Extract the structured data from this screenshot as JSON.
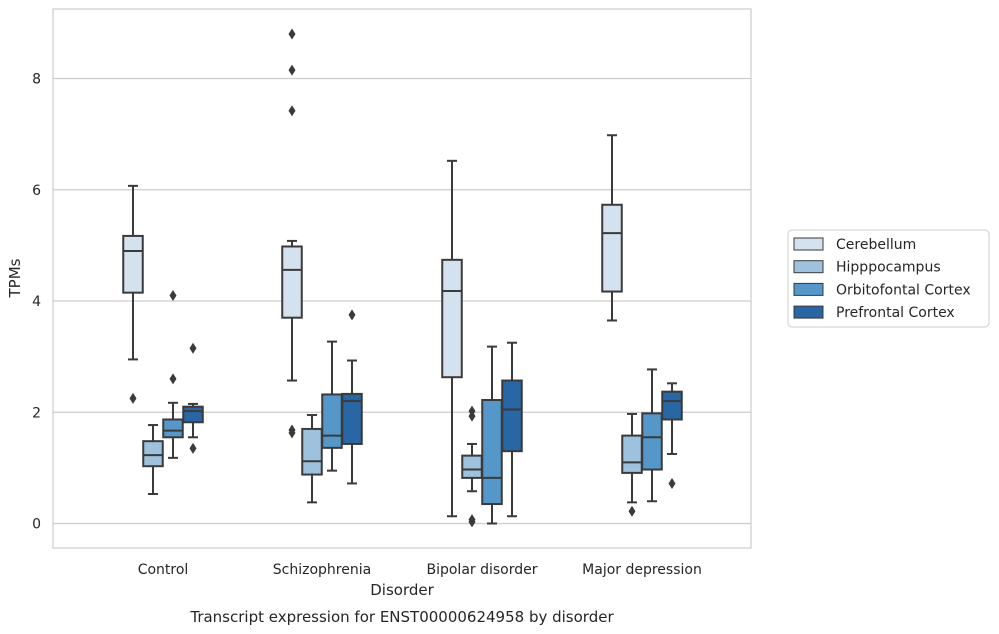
{
  "caption": "Transcript expression for ENST00000624958 by disorder",
  "chart_data": {
    "type": "box",
    "title": "",
    "xlabel": "Disorder",
    "ylabel": "TPMs",
    "ylim": [
      -0.4,
      9.2
    ],
    "yticks": [
      0,
      2,
      4,
      6,
      8
    ],
    "grid": "horizontal",
    "legend_position": "right",
    "categories": [
      "Control",
      "Schizophrenia",
      "Bipolar disorder",
      "Major depression"
    ],
    "series": [
      {
        "name": "Cerebellum",
        "color": "#d4e2f0",
        "boxes": [
          {
            "whislo": 2.95,
            "q1": 4.15,
            "med": 4.9,
            "q3": 5.17,
            "whishi": 6.07,
            "fliers": [
              2.25
            ]
          },
          {
            "whislo": 2.57,
            "q1": 3.7,
            "med": 4.56,
            "q3": 4.98,
            "whishi": 5.08,
            "fliers": [
              1.63,
              1.68,
              7.42,
              8.15,
              8.8
            ]
          },
          {
            "whislo": 0.13,
            "q1": 2.63,
            "med": 4.18,
            "q3": 4.74,
            "whishi": 6.52,
            "fliers": []
          },
          {
            "whislo": 3.65,
            "q1": 4.17,
            "med": 5.22,
            "q3": 5.73,
            "whishi": 6.98,
            "fliers": []
          }
        ]
      },
      {
        "name": "Hipppocampus",
        "color": "#9ec2dd",
        "boxes": [
          {
            "whislo": 0.53,
            "q1": 1.03,
            "med": 1.23,
            "q3": 1.48,
            "whishi": 1.77,
            "fliers": []
          },
          {
            "whislo": 0.38,
            "q1": 0.88,
            "med": 1.12,
            "q3": 1.7,
            "whishi": 1.95,
            "fliers": []
          },
          {
            "whislo": 0.58,
            "q1": 0.82,
            "med": 0.97,
            "q3": 1.22,
            "whishi": 1.43,
            "fliers": [
              0.03,
              0.07,
              1.93,
              2.02
            ]
          },
          {
            "whislo": 0.38,
            "q1": 0.91,
            "med": 1.1,
            "q3": 1.58,
            "whishi": 1.97,
            "fliers": [
              0.22
            ]
          }
        ]
      },
      {
        "name": "Orbitofontal Cortex",
        "color": "#5597c8",
        "boxes": [
          {
            "whislo": 1.18,
            "q1": 1.55,
            "med": 1.67,
            "q3": 1.87,
            "whishi": 2.17,
            "fliers": [
              2.6,
              4.1
            ]
          },
          {
            "whislo": 0.95,
            "q1": 1.36,
            "med": 1.58,
            "q3": 2.32,
            "whishi": 3.27,
            "fliers": []
          },
          {
            "whislo": 0.0,
            "q1": 0.35,
            "med": 0.82,
            "q3": 2.22,
            "whishi": 3.18,
            "fliers": []
          },
          {
            "whislo": 0.4,
            "q1": 0.97,
            "med": 1.55,
            "q3": 1.98,
            "whishi": 2.77,
            "fliers": []
          }
        ]
      },
      {
        "name": "Prefrontal Cortex",
        "color": "#2866a4",
        "boxes": [
          {
            "whislo": 1.55,
            "q1": 1.82,
            "med": 2.02,
            "q3": 2.1,
            "whishi": 2.15,
            "fliers": [
              1.35,
              3.15
            ]
          },
          {
            "whislo": 0.72,
            "q1": 1.43,
            "med": 2.2,
            "q3": 2.33,
            "whishi": 2.93,
            "fliers": [
              3.75
            ]
          },
          {
            "whislo": 0.13,
            "q1": 1.3,
            "med": 2.05,
            "q3": 2.57,
            "whishi": 3.25,
            "fliers": []
          },
          {
            "whislo": 1.25,
            "q1": 1.87,
            "med": 2.2,
            "q3": 2.37,
            "whishi": 2.52,
            "fliers": [
              0.72
            ]
          }
        ]
      }
    ]
  }
}
